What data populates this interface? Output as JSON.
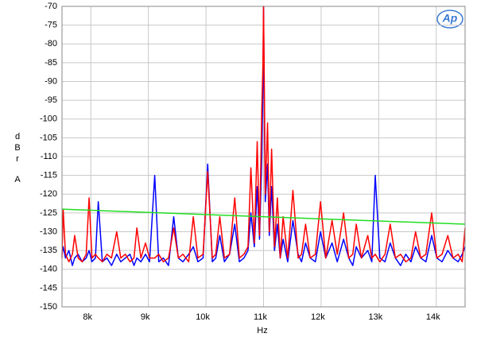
{
  "chart_data": {
    "type": "line",
    "x_label": "Hz",
    "y_label": [
      "d",
      "B",
      "r",
      "A"
    ],
    "logo": "Ap",
    "xlim": [
      7500,
      14500
    ],
    "ylim": [
      -150,
      -70
    ],
    "grid": true,
    "xticks": [
      {
        "value": 8000,
        "label": "8k"
      },
      {
        "value": 9000,
        "label": "9k"
      },
      {
        "value": 10000,
        "label": "10k"
      },
      {
        "value": 11000,
        "label": "11k"
      },
      {
        "value": 12000,
        "label": "12k"
      },
      {
        "value": 13000,
        "label": "13k"
      },
      {
        "value": 14000,
        "label": "14k"
      }
    ],
    "yticks": [
      -70,
      -75,
      -80,
      -85,
      -90,
      -95,
      -100,
      -105,
      -110,
      -115,
      -120,
      -125,
      -130,
      -135,
      -140,
      -145,
      -150
    ],
    "x": [
      7500,
      7520,
      7560,
      7620,
      7680,
      7720,
      7780,
      7850,
      7920,
      7970,
      8020,
      8080,
      8130,
      8200,
      8280,
      8360,
      8450,
      8520,
      8600,
      8680,
      8750,
      8800,
      8870,
      8950,
      9020,
      9110,
      9180,
      9260,
      9350,
      9440,
      9520,
      9600,
      9700,
      9780,
      9860,
      9950,
      10030,
      10110,
      10170,
      10240,
      10320,
      10410,
      10500,
      10580,
      10660,
      10730,
      10780,
      10840,
      10890,
      10930,
      10970,
      10990,
      11000,
      11010,
      11030,
      11070,
      11100,
      11140,
      11190,
      11240,
      11290,
      11340,
      11420,
      11510,
      11600,
      11660,
      11730,
      11810,
      11900,
      11990,
      12080,
      12190,
      12280,
      12390,
      12480,
      12550,
      12610,
      12700,
      12810,
      12880,
      12940,
      13020,
      13110,
      13200,
      13290,
      13380,
      13470,
      13560,
      13640,
      13730,
      13820,
      13920,
      14010,
      14100,
      14200,
      14290,
      14380,
      14450,
      14500
    ],
    "series": [
      {
        "color": "#0000ff",
        "values": [
          -136,
          -134,
          -137,
          -135,
          -139,
          -137,
          -136,
          -138,
          -137,
          -135,
          -138,
          -137,
          -122,
          -138,
          -137,
          -139,
          -136,
          -138,
          -137,
          -136,
          -139,
          -137,
          -138,
          -136,
          -138,
          -115,
          -138,
          -137,
          -139,
          -126,
          -137,
          -138,
          -136,
          -134,
          -138,
          -137,
          -112,
          -138,
          -137,
          -131,
          -138,
          -136,
          -128,
          -138,
          -137,
          -135,
          -125,
          -134,
          -118,
          -132,
          -110,
          -90,
          -70,
          -90,
          -122,
          -112,
          -131,
          -118,
          -135,
          -128,
          -137,
          -132,
          -138,
          -127,
          -136,
          -138,
          -133,
          -137,
          -138,
          -130,
          -137,
          -133,
          -138,
          -132,
          -137,
          -139,
          -134,
          -137,
          -135,
          -138,
          -115,
          -137,
          -138,
          -133,
          -137,
          -139,
          -136,
          -138,
          -134,
          -137,
          -138,
          -131,
          -137,
          -138,
          -135,
          -137,
          -138,
          -136,
          -134
        ]
      },
      {
        "color": "#ff0000",
        "values": [
          -137,
          -124,
          -136,
          -138,
          -136,
          -131,
          -137,
          -138,
          -136,
          -121,
          -137,
          -136,
          -137,
          -138,
          -136,
          -137,
          -130,
          -137,
          -136,
          -138,
          -137,
          -129,
          -137,
          -133,
          -137,
          -137,
          -136,
          -138,
          -137,
          -129,
          -137,
          -136,
          -138,
          -126,
          -137,
          -136,
          -114,
          -137,
          -136,
          -126,
          -137,
          -136,
          -121,
          -137,
          -136,
          -134,
          -113,
          -133,
          -106,
          -131,
          -97,
          -85,
          -70,
          -85,
          -120,
          -101,
          -130,
          -108,
          -134,
          -121,
          -137,
          -126,
          -137,
          -119,
          -137,
          -136,
          -128,
          -137,
          -136,
          -122,
          -137,
          -127,
          -136,
          -125,
          -137,
          -136,
          -128,
          -137,
          -131,
          -137,
          -136,
          -138,
          -136,
          -128,
          -137,
          -136,
          -138,
          -137,
          -130,
          -137,
          -136,
          -125,
          -137,
          -136,
          -131,
          -137,
          -136,
          -138,
          -129
        ]
      },
      {
        "color": "#22dd22",
        "x": [
          7500,
          14500
        ],
        "values": [
          -124,
          -128
        ]
      }
    ]
  }
}
